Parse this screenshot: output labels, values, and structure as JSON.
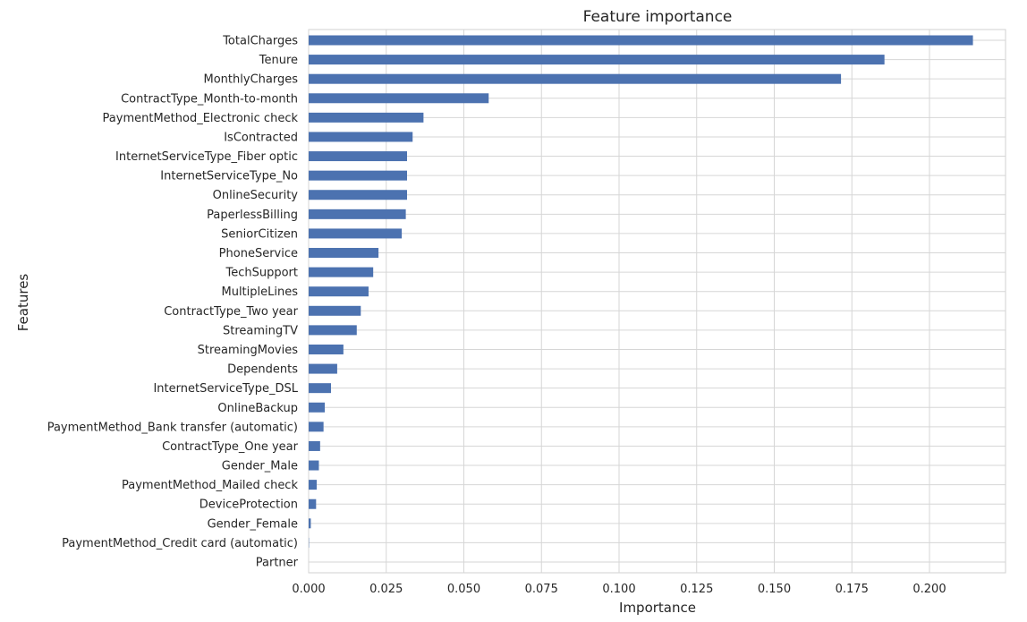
{
  "chart_data": {
    "type": "bar",
    "orientation": "horizontal",
    "title": "Feature importance",
    "xlabel": "Importance",
    "ylabel": "Features",
    "xlim": [
      0,
      0.2245
    ],
    "xticks": [
      0.0,
      0.025,
      0.05,
      0.075,
      0.1,
      0.125,
      0.15,
      0.175,
      0.2
    ],
    "xtick_labels": [
      "0.000",
      "0.025",
      "0.050",
      "0.075",
      "0.100",
      "0.125",
      "0.150",
      "0.175",
      "0.200"
    ],
    "grid": true,
    "colors": {
      "bar": "#4c72b0",
      "grid": "#d6d6d6"
    },
    "categories": [
      "TotalCharges",
      "Tenure",
      "MonthlyCharges",
      "ContractType_Month-to-month",
      "PaymentMethod_Electronic check",
      "IsContracted",
      "InternetServiceType_Fiber optic",
      "InternetServiceType_No",
      "OnlineSecurity",
      "PaperlessBilling",
      "SeniorCitizen",
      "PhoneService",
      "TechSupport",
      "MultipleLines",
      "ContractType_Two year",
      "StreamingTV",
      "StreamingMovies",
      "Dependents",
      "InternetServiceType_DSL",
      "OnlineBackup",
      "PaymentMethod_Bank transfer (automatic)",
      "ContractType_One year",
      "Gender_Male",
      "PaymentMethod_Mailed check",
      "DeviceProtection",
      "Gender_Female",
      "PaymentMethod_Credit card (automatic)",
      "Partner"
    ],
    "values": [
      0.214,
      0.1855,
      0.1715,
      0.058,
      0.037,
      0.0335,
      0.0317,
      0.0317,
      0.0317,
      0.0313,
      0.03,
      0.0225,
      0.0208,
      0.0193,
      0.0168,
      0.0155,
      0.0112,
      0.0092,
      0.0072,
      0.0052,
      0.0048,
      0.0037,
      0.0033,
      0.0026,
      0.0024,
      0.0007,
      0.0001,
      0.0
    ]
  }
}
